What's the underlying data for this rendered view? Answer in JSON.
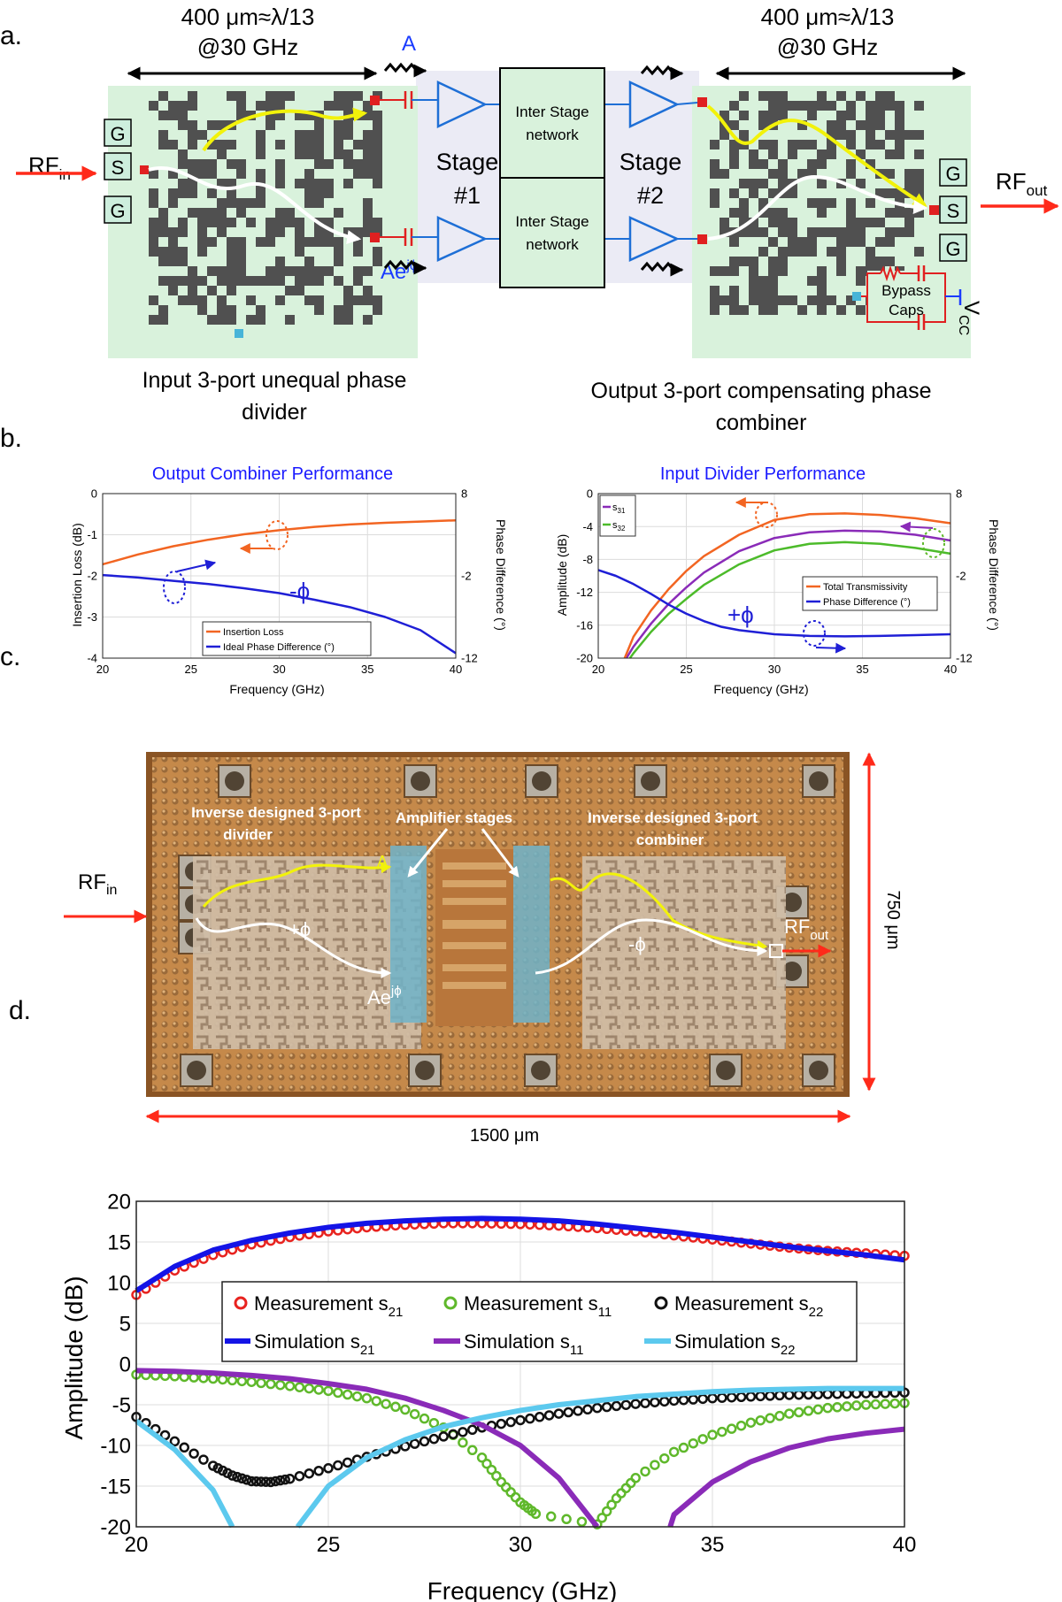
{
  "panel_labels": {
    "a": "a.",
    "b": "b.",
    "c": "c.",
    "d": "d."
  },
  "panel_a": {
    "dim_left_line1": "400 μm≈λ/13",
    "dim_left_line2": "@30 GHz",
    "dim_right_line1": "400 μm≈λ/13",
    "dim_right_line2": "@30 GHz",
    "rf_in": "RF",
    "rf_in_sub": "in",
    "rf_out": "RF",
    "rf_out_sub": "out",
    "port_left": [
      "G",
      "S",
      "G"
    ],
    "port_right": [
      "G",
      "S",
      "G"
    ],
    "label_A": "A",
    "label_Aejphi": "Ae",
    "label_Aejphi_sup": "jϕ",
    "stage1_l1": "Stage",
    "stage1_l2": "#1",
    "stage2_l1": "Stage",
    "stage2_l2": "#2",
    "inter_stage_l1": "Inter Stage",
    "inter_stage_l2": "network",
    "bypass_l1": "Bypass",
    "bypass_l2": "Caps",
    "vcc": "V",
    "vcc_sub": "CC",
    "caption_left_l1": "Input 3-port unequal phase",
    "caption_left_l2": "divider",
    "caption_right_l1": "Output 3-port compensating phase",
    "caption_right_l2": "combiner",
    "colors": {
      "pad_bg": "#d9f2dc",
      "pixel": "#505050",
      "amp": "#1e6fd6",
      "rf_arrow": "#ff2a1a",
      "yellow_path": "#f2f20a",
      "white_path": "#ffffff",
      "cap_red": "#e02020",
      "label_blue": "#1a3cff"
    }
  },
  "panel_c": {
    "label_divider_l1": "Inverse designed 3-port",
    "label_divider_l2": "divider",
    "label_amp": "Amplifier stages",
    "label_combiner_l1": "Inverse designed 3-port",
    "label_combiner_l2": "combiner",
    "label_A": "A",
    "label_plus_phi": "+ϕ",
    "label_minus_phi": "-ϕ",
    "label_Aejphi": "Ae",
    "label_Aejphi_sup": "jϕ",
    "rf_in": "RF",
    "rf_in_sub": "in",
    "rf_out": "RF",
    "rf_out_sub": "out",
    "dim_height": "750 μm",
    "dim_width": "1500 μm",
    "colors": {
      "die_bg": "#c5894a",
      "die_dark": "#8a5424",
      "overlay": "#e6e6e6",
      "amp_overlay": "#6fb3c9"
    }
  },
  "chart_data": [
    {
      "id": "b-left",
      "type": "line",
      "title": "Output Combiner Performance",
      "xlabel": "Frequency (GHz)",
      "ylabel": "Insertion Loss (dB)",
      "ylabel_right": "Phase Difference (°)",
      "xlim": [
        20,
        40
      ],
      "ylim": [
        -4,
        0
      ],
      "ylim_right": [
        -12,
        8
      ],
      "x_ticks": [
        20,
        25,
        30,
        35,
        40
      ],
      "y_ticks": [
        0,
        -1,
        -2,
        -3,
        -4
      ],
      "y_ticks_right": [
        8,
        -2,
        -12
      ],
      "grid": true,
      "legend_position": "bottom-center",
      "annotation": "-ϕ",
      "series": [
        {
          "name": "Insertion Loss",
          "axis": "left",
          "color": "#f26522",
          "x": [
            20,
            22,
            24,
            26,
            28,
            30,
            32,
            34,
            36,
            38,
            40
          ],
          "values": [
            -1.72,
            -1.48,
            -1.28,
            -1.12,
            -0.99,
            -0.89,
            -0.81,
            -0.75,
            -0.71,
            -0.68,
            -0.65
          ]
        },
        {
          "name": "Ideal Phase Difference (°)",
          "axis": "right",
          "color": "#1f1fd6",
          "x": [
            20,
            22,
            24,
            26,
            28,
            30,
            32,
            34,
            36,
            38,
            40
          ],
          "values": [
            -1.9,
            -2.2,
            -2.6,
            -3.0,
            -3.5,
            -4.1,
            -4.9,
            -5.8,
            -7.0,
            -8.6,
            -11.4
          ]
        }
      ]
    },
    {
      "id": "b-right",
      "type": "line",
      "title": "Input Divider Performance",
      "xlabel": "Frequency (GHz)",
      "ylabel": "Amplitude (dB)",
      "ylabel_right": "Phase Difference (°)",
      "xlim": [
        20,
        40
      ],
      "ylim": [
        -20,
        0
      ],
      "ylim_right": [
        -12,
        8
      ],
      "x_ticks": [
        20,
        25,
        30,
        35,
        40
      ],
      "y_ticks": [
        0,
        -4,
        -8,
        -12,
        -16,
        -20
      ],
      "y_ticks_right": [
        8,
        -2,
        -12
      ],
      "grid": true,
      "legend_position": "top-left and bottom-right",
      "annotation": "+ϕ",
      "series": [
        {
          "name": "s",
          "name_sub": "31",
          "axis": "left",
          "color": "#8a2bb8",
          "x": [
            21.6,
            22,
            23,
            24,
            25,
            26,
            28,
            30,
            32,
            34,
            36,
            38,
            40
          ],
          "values": [
            -20,
            -18.6,
            -15.8,
            -13.4,
            -11.4,
            -9.6,
            -7.0,
            -5.4,
            -4.7,
            -4.5,
            -4.6,
            -5.0,
            -5.7
          ]
        },
        {
          "name": "s",
          "name_sub": "32",
          "axis": "left",
          "color": "#4cbb2a",
          "x": [
            21.8,
            22,
            23,
            24,
            25,
            26,
            28,
            30,
            32,
            34,
            36,
            38,
            40
          ],
          "values": [
            -20,
            -19.4,
            -16.8,
            -14.6,
            -12.8,
            -11.1,
            -8.6,
            -6.9,
            -6.1,
            -5.9,
            -6.1,
            -6.6,
            -7.3
          ]
        },
        {
          "name": "Total Transmissivity",
          "axis": "left",
          "color": "#f26522",
          "x": [
            21.5,
            22,
            23,
            24,
            25,
            26,
            28,
            30,
            32,
            34,
            36,
            38,
            40
          ],
          "values": [
            -20,
            -17.4,
            -14.2,
            -11.6,
            -9.4,
            -7.6,
            -5.0,
            -3.2,
            -2.5,
            -2.4,
            -2.6,
            -3.0,
            -3.6
          ]
        },
        {
          "name": "Phase Difference (°)",
          "axis": "right",
          "color": "#1f1fd6",
          "x": [
            20,
            21,
            22,
            23,
            24,
            25,
            26,
            27,
            28,
            30,
            32,
            34,
            36,
            38,
            40
          ],
          "values": [
            -1.3,
            -2.0,
            -3.0,
            -4.2,
            -5.5,
            -6.6,
            -7.5,
            -8.2,
            -8.6,
            -9.1,
            -9.3,
            -9.35,
            -9.3,
            -9.2,
            -9.1
          ]
        }
      ]
    },
    {
      "id": "d",
      "type": "line",
      "xlabel": "Frequency (GHz)",
      "ylabel": "Amplitude (dB)",
      "xlim": [
        20,
        40
      ],
      "ylim": [
        -20,
        20
      ],
      "x_ticks": [
        20,
        25,
        30,
        35,
        40
      ],
      "y_ticks": [
        20,
        15,
        10,
        5,
        0,
        -5,
        -10,
        -15,
        -20
      ],
      "grid": true,
      "legend_position": "center-left",
      "series": [
        {
          "name": "Measurement s",
          "name_sub": "21",
          "kind": "markers",
          "color": "#e8231f",
          "x": [
            20,
            21,
            22,
            23,
            24,
            25,
            26,
            27,
            28,
            29,
            30,
            31,
            32,
            33,
            34,
            35,
            36,
            37,
            38,
            39,
            40
          ],
          "values": [
            8.5,
            11.5,
            13.4,
            14.7,
            15.6,
            16.3,
            16.8,
            17.1,
            17.3,
            17.3,
            17.2,
            17.0,
            16.7,
            16.3,
            15.8,
            15.3,
            14.8,
            14.3,
            13.9,
            13.6,
            13.3
          ]
        },
        {
          "name": "Measurement s",
          "name_sub": "11",
          "kind": "markers",
          "color": "#5fb82b",
          "x": [
            20,
            21,
            22,
            23,
            24,
            25,
            26,
            27,
            28,
            29,
            29.5,
            30,
            30.4,
            32,
            32.5,
            33,
            34,
            35,
            36,
            37,
            38,
            39,
            40
          ],
          "values": [
            -1.3,
            -1.5,
            -1.8,
            -2.2,
            -2.7,
            -3.3,
            -4.2,
            -5.6,
            -7.8,
            -11.5,
            -14.5,
            -17.0,
            -18.4,
            -19.7,
            -16.5,
            -14.0,
            -10.8,
            -8.7,
            -7.2,
            -6.1,
            -5.4,
            -5.0,
            -4.8
          ]
        },
        {
          "name": "Measurement s",
          "name_sub": "22",
          "kind": "markers",
          "color": "#111111",
          "x": [
            20,
            21,
            22,
            22.5,
            23,
            23.5,
            24,
            25,
            26,
            27,
            28,
            29,
            30,
            31,
            32,
            33,
            34,
            35,
            36,
            37,
            38,
            39,
            40
          ],
          "values": [
            -6.5,
            -9.5,
            -12.5,
            -13.7,
            -14.4,
            -14.5,
            -14.1,
            -12.8,
            -11.4,
            -10.1,
            -8.9,
            -7.8,
            -6.9,
            -6.1,
            -5.4,
            -4.9,
            -4.5,
            -4.2,
            -4.0,
            -3.8,
            -3.7,
            -3.6,
            -3.5
          ]
        },
        {
          "name": "Simulation s",
          "name_sub": "21",
          "kind": "line",
          "color": "#1414e6",
          "x": [
            20,
            21,
            22,
            23,
            24,
            25,
            26,
            27,
            28,
            29,
            30,
            31,
            32,
            33,
            34,
            35,
            36,
            37,
            38,
            39,
            40
          ],
          "values": [
            9.0,
            12.0,
            14.0,
            15.2,
            16.1,
            16.8,
            17.3,
            17.6,
            17.8,
            17.9,
            17.8,
            17.6,
            17.2,
            16.7,
            16.2,
            15.6,
            15.0,
            14.4,
            13.9,
            13.4,
            12.8
          ]
        },
        {
          "name": "Simulation s",
          "name_sub": "11",
          "kind": "line",
          "color": "#8a2bb8",
          "x": [
            20,
            21,
            22,
            23,
            24,
            25,
            26,
            27,
            28,
            29,
            30,
            31,
            32,
            33.9,
            34,
            35,
            36,
            37,
            38,
            39,
            40
          ],
          "values": [
            -0.8,
            -0.9,
            -1.1,
            -1.4,
            -1.8,
            -2.4,
            -3.1,
            -4.2,
            -5.7,
            -7.5,
            -10.0,
            -14.0,
            -20.0,
            -20.0,
            -18.5,
            -14.5,
            -12.0,
            -10.3,
            -9.2,
            -8.5,
            -8.0
          ]
        },
        {
          "name": "Simulation s",
          "name_sub": "22",
          "kind": "line",
          "color": "#5cc9ee",
          "x": [
            20,
            21,
            22,
            22.5,
            24.2,
            25,
            26,
            27,
            28,
            29,
            30,
            31,
            32,
            33,
            34,
            35,
            36,
            37,
            38,
            39,
            40
          ],
          "values": [
            -7.0,
            -10.5,
            -15.5,
            -20.0,
            -20.0,
            -15.0,
            -11.5,
            -9.3,
            -7.7,
            -6.6,
            -5.7,
            -5.0,
            -4.5,
            -4.0,
            -3.7,
            -3.4,
            -3.2,
            -3.1,
            -3.0,
            -3.0,
            -3.0
          ]
        }
      ]
    }
  ]
}
